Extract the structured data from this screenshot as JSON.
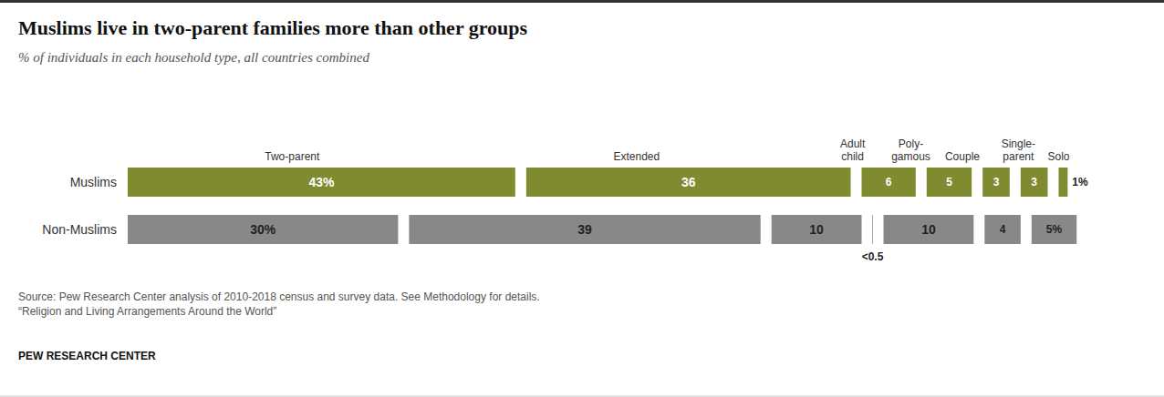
{
  "chart_data": {
    "type": "bar",
    "orientation": "horizontal",
    "stacked": true,
    "title": "Muslims live in two-parent families more than other groups",
    "subtitle": "% of individuals in each household type, all countries combined",
    "categories": [
      "Muslims",
      "Non-Muslims"
    ],
    "series": [
      {
        "name": "Two-parent",
        "values": [
          43,
          30
        ],
        "value_labels": [
          "43%",
          "30%"
        ],
        "colors": [
          "#808b2f",
          "#888888"
        ]
      },
      {
        "name": "Extended",
        "values": [
          36,
          39
        ],
        "value_labels": [
          "36",
          "39"
        ],
        "colors": [
          "#808b2f",
          "#888888"
        ]
      },
      {
        "name": "Adult\nchild",
        "values": [
          6,
          10
        ],
        "value_labels": [
          "6",
          "10"
        ],
        "colors": [
          "#808b2f",
          "#888888"
        ]
      },
      {
        "name": "Poly-\ngamous",
        "values": [
          5,
          0
        ],
        "value_labels": [
          "5",
          "<0.5"
        ],
        "colors": [
          "#808b2f",
          "#888888"
        ]
      },
      {
        "name": "Couple",
        "values": [
          3,
          10
        ],
        "value_labels": [
          "3",
          "10"
        ],
        "colors": [
          "#808b2f",
          "#888888"
        ]
      },
      {
        "name": "Single-\nparent",
        "values": [
          3,
          4
        ],
        "value_labels": [
          "3",
          "4"
        ],
        "colors": [
          "#808b2f",
          "#888888"
        ]
      },
      {
        "name": "Solo",
        "values": [
          1,
          5
        ],
        "value_labels": [
          "1%",
          "5%"
        ],
        "colors": [
          "#808b2f",
          "#888888"
        ]
      }
    ],
    "xlim": [
      0,
      100
    ],
    "tick_labels": false,
    "grid": false,
    "data_labels": true,
    "source": "Source: Pew Research Center analysis of 2010-2018 census and survey data. See Methodology for details.\n“Religion and Living Arrangements Around the World”",
    "footer": "PEW RESEARCH CENTER"
  }
}
